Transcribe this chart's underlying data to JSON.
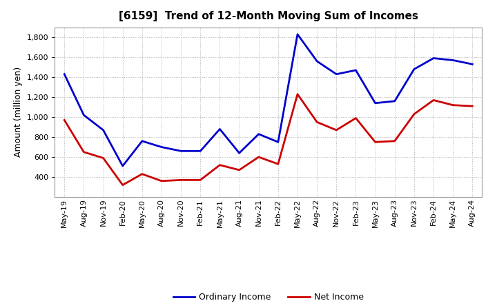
{
  "title": "[6159]  Trend of 12-Month Moving Sum of Incomes",
  "ylabel": "Amount (million yen)",
  "background_color": "#ffffff",
  "plot_bg_color": "#ffffff",
  "grid_color": "#b0b0b0",
  "x_labels": [
    "May-19",
    "Aug-19",
    "Nov-19",
    "Feb-20",
    "May-20",
    "Aug-20",
    "Nov-20",
    "Feb-21",
    "May-21",
    "Aug-21",
    "Nov-21",
    "Feb-22",
    "May-22",
    "Aug-22",
    "Nov-22",
    "Feb-23",
    "May-23",
    "Aug-23",
    "Nov-23",
    "Feb-24",
    "May-24",
    "Aug-24"
  ],
  "ordinary_income": [
    1430,
    1020,
    870,
    510,
    760,
    700,
    660,
    660,
    880,
    640,
    830,
    750,
    1830,
    1560,
    1430,
    1470,
    1140,
    1160,
    1480,
    1590,
    1570,
    1530
  ],
  "net_income": [
    970,
    650,
    590,
    320,
    430,
    360,
    370,
    370,
    520,
    470,
    600,
    530,
    1230,
    950,
    870,
    990,
    750,
    760,
    1030,
    1170,
    1120,
    1110
  ],
  "ordinary_color": "#0000cc",
  "net_color": "#cc0000",
  "ylim_min": 200,
  "ylim_max": 1900,
  "yticks": [
    400,
    600,
    800,
    1000,
    1200,
    1400,
    1600,
    1800
  ],
  "legend_labels": [
    "Ordinary Income",
    "Net Income"
  ],
  "line_width": 2.0,
  "title_fontsize": 11,
  "tick_fontsize": 8,
  "ylabel_fontsize": 9
}
